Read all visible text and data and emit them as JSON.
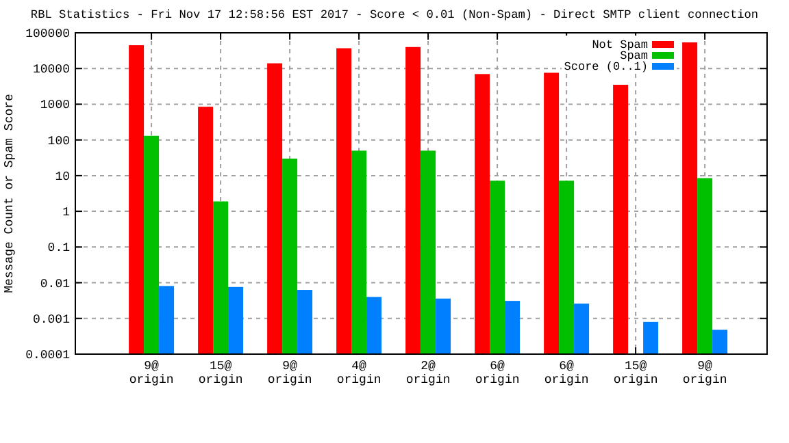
{
  "chart_data": {
    "type": "bar",
    "title": "RBL Statistics - Fri Nov 17 12:58:56 EST 2017 - Score < 0.01 (Non-Spam) - Direct SMTP client connection",
    "ylabel": "Message Count or Spam Score",
    "categories": [
      "9@\norigin",
      "15@\norigin",
      "9@\norigin",
      "4@\norigin",
      "2@\norigin",
      "6@\norigin",
      "6@\norigin",
      "15@\norigin",
      "9@\norigin"
    ],
    "series": [
      {
        "name": "Not Spam",
        "color": "#ff0000",
        "values": [
          45000,
          850,
          14000,
          37000,
          40000,
          7000,
          7600,
          3500,
          54000
        ]
      },
      {
        "name": "Spam",
        "color": "#00c000",
        "values": [
          130,
          1.9,
          30,
          50,
          50,
          7.2,
          7.2,
          null,
          8.5
        ]
      },
      {
        "name": "Score (0..1)",
        "color": "#0080ff",
        "values": [
          0.0081,
          0.0076,
          0.0063,
          0.004,
          0.0036,
          0.0031,
          0.0026,
          0.0008,
          0.00048
        ]
      }
    ],
    "log": true,
    "ylim": [
      0.0001,
      100000
    ],
    "yticks": [
      0.0001,
      0.001,
      0.01,
      0.1,
      1,
      10,
      100,
      1000,
      10000,
      100000
    ],
    "grid": true,
    "legend": "top right"
  }
}
